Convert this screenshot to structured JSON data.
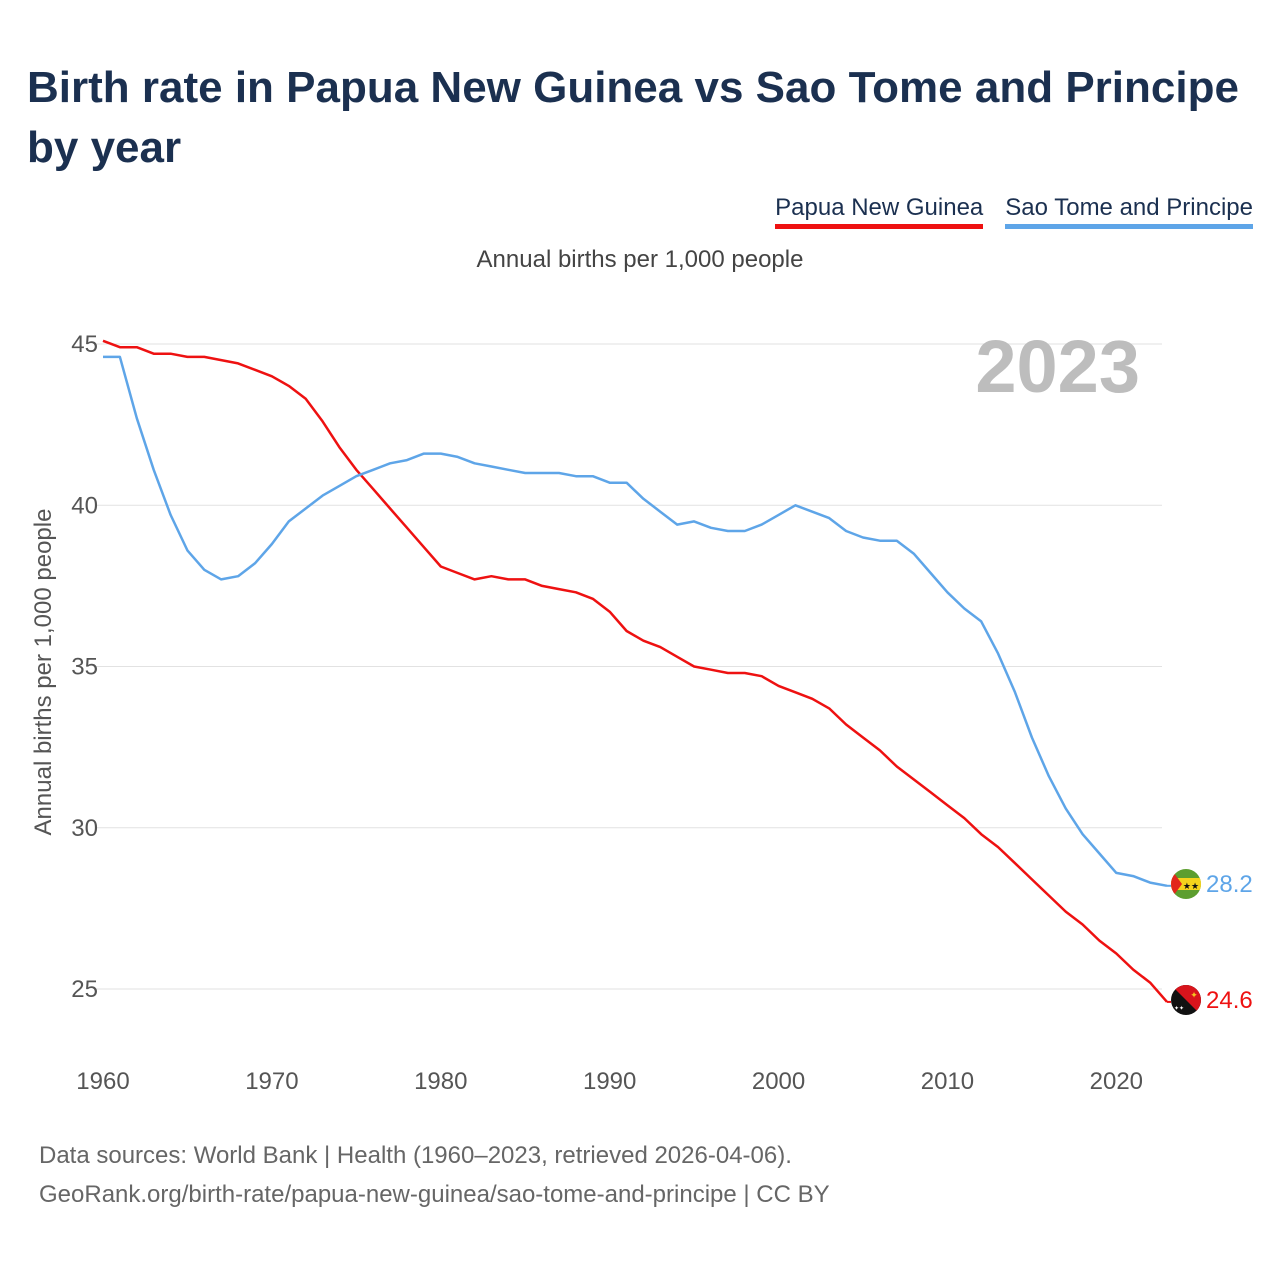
{
  "title": "Birth rate in Papua New Guinea vs Sao Tome and Principe by year",
  "subtitle": "Annual births per 1,000 people",
  "year_label": "2023",
  "legend": [
    {
      "name": "Papua New Guinea",
      "color": "#ee1111"
    },
    {
      "name": "Sao Tome and Principe",
      "color": "#5ea5e8"
    }
  ],
  "source": {
    "line1": "Data sources: World Bank | Health (1960–2023, retrieved 2026-04-06).",
    "line2": "GeoRank.org/birth-rate/papua-new-guinea/sao-tome-and-principe | CC BY"
  },
  "chart_data": {
    "type": "line",
    "title": "Birth rate in Papua New Guinea vs Sao Tome and Principe by year",
    "xlabel": "",
    "ylabel": "Annual births per 1,000 people",
    "xlim": [
      1960,
      2023
    ],
    "ylim": [
      23,
      46
    ],
    "x_ticks": [
      1960,
      1970,
      1980,
      1990,
      2000,
      2010,
      2020
    ],
    "y_ticks": [
      25,
      30,
      35,
      40,
      45
    ],
    "grid": true,
    "legend_position": "top-right",
    "x": [
      1960,
      1961,
      1962,
      1963,
      1964,
      1965,
      1966,
      1967,
      1968,
      1969,
      1970,
      1971,
      1972,
      1973,
      1974,
      1975,
      1976,
      1977,
      1978,
      1979,
      1980,
      1981,
      1982,
      1983,
      1984,
      1985,
      1986,
      1987,
      1988,
      1989,
      1990,
      1991,
      1992,
      1993,
      1994,
      1995,
      1996,
      1997,
      1998,
      1999,
      2000,
      2001,
      2002,
      2003,
      2004,
      2005,
      2006,
      2007,
      2008,
      2009,
      2010,
      2011,
      2012,
      2013,
      2014,
      2015,
      2016,
      2017,
      2018,
      2019,
      2020,
      2021,
      2022,
      2023
    ],
    "series": [
      {
        "name": "Papua New Guinea",
        "color": "#ee1111",
        "end_label": "24.6",
        "flag": "papua-new-guinea-flag",
        "values": [
          45.1,
          44.9,
          44.9,
          44.7,
          44.7,
          44.6,
          44.6,
          44.5,
          44.4,
          44.2,
          44.0,
          43.7,
          43.3,
          42.6,
          41.8,
          41.1,
          40.5,
          39.9,
          39.3,
          38.7,
          38.1,
          37.9,
          37.7,
          37.8,
          37.7,
          37.7,
          37.5,
          37.4,
          37.3,
          37.1,
          36.7,
          36.1,
          35.8,
          35.6,
          35.3,
          35.0,
          34.9,
          34.8,
          34.8,
          34.7,
          34.4,
          34.2,
          34.0,
          33.7,
          33.2,
          32.8,
          32.4,
          31.9,
          31.5,
          31.1,
          30.7,
          30.3,
          29.8,
          29.4,
          28.9,
          28.4,
          27.9,
          27.4,
          27.0,
          26.5,
          26.1,
          25.6,
          25.2,
          24.6
        ]
      },
      {
        "name": "Sao Tome and Principe",
        "color": "#5ea5e8",
        "end_label": "28.2",
        "flag": "sao-tome-and-principe-flag",
        "values": [
          44.6,
          44.6,
          42.7,
          41.1,
          39.7,
          38.6,
          38.0,
          37.7,
          37.8,
          38.2,
          38.8,
          39.5,
          39.9,
          40.3,
          40.6,
          40.9,
          41.1,
          41.3,
          41.4,
          41.6,
          41.6,
          41.5,
          41.3,
          41.2,
          41.1,
          41.0,
          41.0,
          41.0,
          40.9,
          40.9,
          40.7,
          40.7,
          40.2,
          39.8,
          39.4,
          39.5,
          39.3,
          39.2,
          39.2,
          39.4,
          39.7,
          40.0,
          39.8,
          39.6,
          39.2,
          39.0,
          38.9,
          38.9,
          38.5,
          37.9,
          37.3,
          36.8,
          36.4,
          35.4,
          34.2,
          32.8,
          31.6,
          30.6,
          29.8,
          29.2,
          28.6,
          28.5,
          28.3,
          28.2
        ]
      }
    ]
  }
}
